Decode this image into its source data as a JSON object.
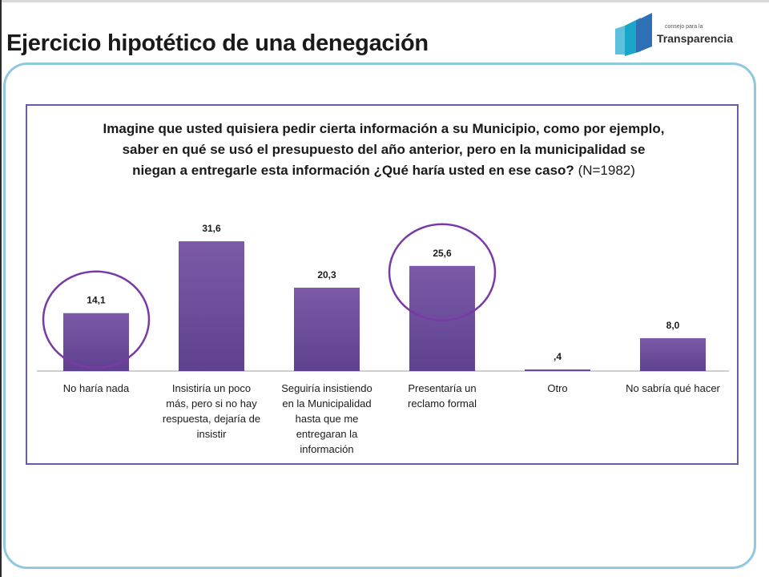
{
  "slide": {
    "title": "Ejercicio hipotético de una denegación"
  },
  "logo": {
    "small_text": "consejo para la",
    "main_text": "Transparencia",
    "colors": [
      "#1aa6c9",
      "#2f6fb5",
      "#5fc0de"
    ]
  },
  "colors": {
    "bar": "#7b5aa8",
    "bar_dark": "#5f4190",
    "frame": "#8fc8df",
    "chart_border": "#6c5aa6",
    "highlight_circle": "#7a3aa6"
  },
  "chart_data": {
    "type": "bar",
    "title": "Imagine que usted quisiera pedir cierta información a su Municipio, como por ejemplo, saber en qué se usó el presupuesto del año anterior, pero en la municipalidad se niegan a entregarle esta información ¿Qué haría usted en ese caso?",
    "subtitle": "(N=1982)",
    "categories": [
      "No haría nada",
      "Insistiría un poco más, pero si no hay respuesta, dejaría de insistir",
      "Seguiría insistiendo en la Municipalidad hasta que me entregaran la información",
      "Presentaría un reclamo formal",
      "Otro",
      "No sabría qué hacer"
    ],
    "category_lines": [
      [
        "No haría nada"
      ],
      [
        "Insistiría un poco",
        "más, pero si no hay",
        "respuesta, dejaría de",
        "insistir"
      ],
      [
        "Seguiría insistiendo",
        "en la Municipalidad",
        "hasta que me",
        "entregaran la",
        "información"
      ],
      [
        "Presentaría un",
        "reclamo formal"
      ],
      [
        "Otro"
      ],
      [
        "No sabría qué hacer"
      ]
    ],
    "values": [
      14.1,
      31.6,
      20.3,
      25.6,
      0.4,
      8.0
    ],
    "data_labels": [
      "14,1",
      "31,6",
      "20,3",
      "25,6",
      ",4",
      "8,0"
    ],
    "highlighted": [
      "No haría nada",
      "Presentaría un reclamo formal"
    ],
    "ylim": [
      0,
      40
    ],
    "xlabel": "",
    "ylabel": "",
    "grid": false,
    "legend": "none"
  }
}
